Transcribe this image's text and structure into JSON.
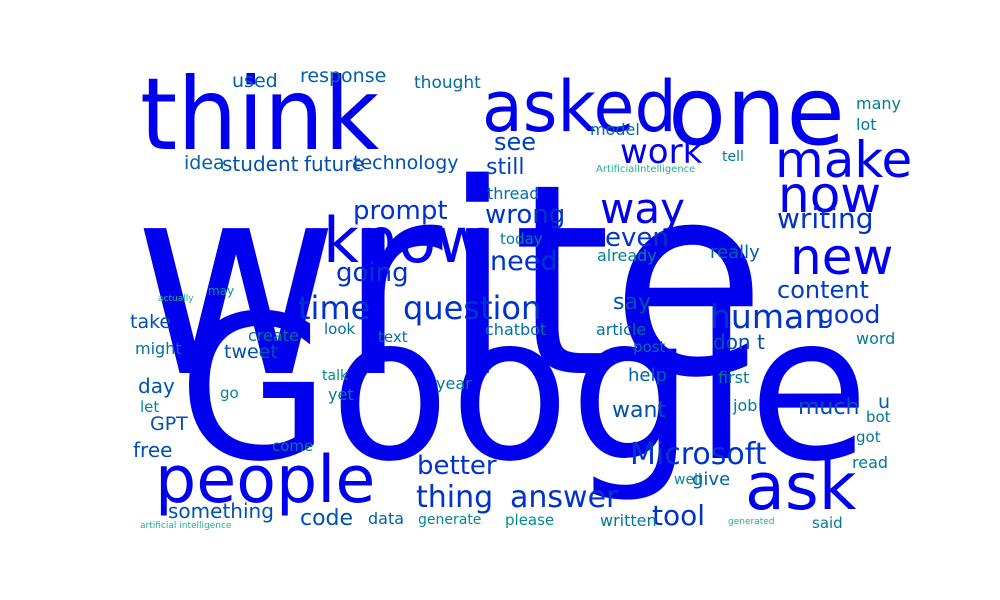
{
  "word_cloud": {
    "words": [
      {
        "text": "write",
        "color": "#0000ee"
      },
      {
        "text": "Google",
        "color": "#0000ee"
      },
      {
        "text": "think",
        "color": "#0000ee"
      },
      {
        "text": "one",
        "color": "#0000ee"
      },
      {
        "text": "asked",
        "color": "#0000ee"
      },
      {
        "text": "know",
        "color": "#0000ee"
      },
      {
        "text": "people",
        "color": "#0000ee"
      },
      {
        "text": "ask",
        "color": "#0000ee"
      },
      {
        "text": "make",
        "color": "#0000ee"
      },
      {
        "text": "now",
        "color": "#0000ee"
      },
      {
        "text": "new",
        "color": "#0000ee"
      },
      {
        "text": "way",
        "color": "#0000ee"
      },
      {
        "text": "work",
        "color": "#0000ee"
      },
      {
        "text": "time",
        "color": "#0033cc"
      },
      {
        "text": "question",
        "color": "#0033cc"
      },
      {
        "text": "human",
        "color": "#0033cc"
      },
      {
        "text": "Microsoft",
        "color": "#0033cc"
      },
      {
        "text": "answer",
        "color": "#0033cc"
      },
      {
        "text": "thing",
        "color": "#0033cc"
      },
      {
        "text": "tool",
        "color": "#0033cc"
      },
      {
        "text": "writing",
        "color": "#0033cc"
      },
      {
        "text": "need",
        "color": "#0033cc"
      },
      {
        "text": "wrong",
        "color": "#0033cc"
      },
      {
        "text": "even",
        "color": "#0033cc"
      },
      {
        "text": "going",
        "color": "#0033cc"
      },
      {
        "text": "prompt",
        "color": "#0033cc"
      },
      {
        "text": "better",
        "color": "#0033cc"
      },
      {
        "text": "good",
        "color": "#0033cc"
      },
      {
        "text": "content",
        "color": "#0040c0"
      },
      {
        "text": "see",
        "color": "#0040c0"
      },
      {
        "text": "still",
        "color": "#0040c0"
      },
      {
        "text": "student",
        "color": "#0050b0"
      },
      {
        "text": "future",
        "color": "#0050b0"
      },
      {
        "text": "technology",
        "color": "#0050b0"
      },
      {
        "text": "idea",
        "color": "#0060a8"
      },
      {
        "text": "used",
        "color": "#0060a8"
      },
      {
        "text": "response",
        "color": "#0060a8"
      },
      {
        "text": "thought",
        "color": "#006aa0"
      },
      {
        "text": "model",
        "color": "#006aa0"
      },
      {
        "text": "many",
        "color": "#007a98"
      },
      {
        "text": "lot",
        "color": "#007a98"
      },
      {
        "text": "tell",
        "color": "#007a98"
      },
      {
        "text": "ArtificialIntelligence",
        "color": "#20b090"
      },
      {
        "text": "thread",
        "color": "#0070a0"
      },
      {
        "text": "today",
        "color": "#0080a0"
      },
      {
        "text": "already",
        "color": "#0080a0"
      },
      {
        "text": "really",
        "color": "#0060a8"
      },
      {
        "text": "say",
        "color": "#0050b0"
      },
      {
        "text": "take",
        "color": "#0050b0"
      },
      {
        "text": "tweet",
        "color": "#0050b0"
      },
      {
        "text": "don t",
        "color": "#0050b0"
      },
      {
        "text": "day",
        "color": "#0050b0"
      },
      {
        "text": "GPT",
        "color": "#0050b0"
      },
      {
        "text": "free",
        "color": "#0050b0"
      },
      {
        "text": "code",
        "color": "#0050b0"
      },
      {
        "text": "something",
        "color": "#0050b0"
      },
      {
        "text": "want",
        "color": "#0050b0"
      },
      {
        "text": "much",
        "color": "#0050b0"
      },
      {
        "text": "help",
        "color": "#0060a8"
      },
      {
        "text": "give",
        "color": "#0060a8"
      },
      {
        "text": "data",
        "color": "#0060a8"
      },
      {
        "text": "might",
        "color": "#0070a0"
      },
      {
        "text": "create",
        "color": "#0070a0"
      },
      {
        "text": "look",
        "color": "#0070a0"
      },
      {
        "text": "text",
        "color": "#0070a0"
      },
      {
        "text": "chatbot",
        "color": "#0070a0"
      },
      {
        "text": "article",
        "color": "#0070a0"
      },
      {
        "text": "post",
        "color": "#0070a0"
      },
      {
        "text": "word",
        "color": "#007a98"
      },
      {
        "text": "talk",
        "color": "#008a90"
      },
      {
        "text": "year",
        "color": "#007a98"
      },
      {
        "text": "first",
        "color": "#007a98"
      },
      {
        "text": "job",
        "color": "#007a98"
      },
      {
        "text": "u",
        "color": "#0060a8"
      },
      {
        "text": "bot",
        "color": "#007a98"
      },
      {
        "text": "got",
        "color": "#007a98"
      },
      {
        "text": "read",
        "color": "#007a98"
      },
      {
        "text": "go",
        "color": "#008a90"
      },
      {
        "text": "yet",
        "color": "#007a98"
      },
      {
        "text": "let",
        "color": "#008a90"
      },
      {
        "text": "come",
        "color": "#007a98"
      },
      {
        "text": "may",
        "color": "#009a88"
      },
      {
        "text": "actually",
        "color": "#20b090"
      },
      {
        "text": "well",
        "color": "#008a90"
      },
      {
        "text": "generate",
        "color": "#008a90"
      },
      {
        "text": "please",
        "color": "#008a90"
      },
      {
        "text": "written",
        "color": "#007a98"
      },
      {
        "text": "said",
        "color": "#007a98"
      },
      {
        "text": "generated",
        "color": "#20b090"
      },
      {
        "text": "artificial intelligence",
        "color": "#20b090"
      }
    ]
  }
}
